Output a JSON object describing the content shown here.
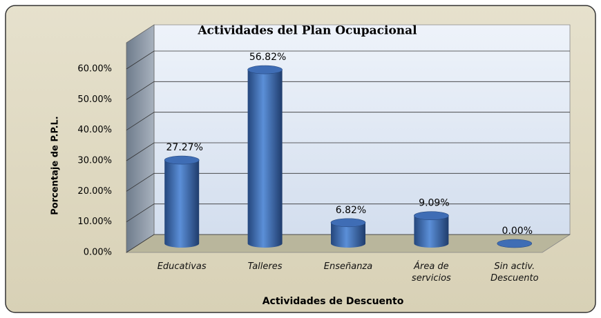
{
  "chart_data": {
    "type": "bar3d",
    "title": "Actividades del Plan Ocupacional",
    "x_label": "Actividades  de Descuento",
    "y_label": "Porcentaje de P.P.L.",
    "categories": [
      "Educativas",
      "Talleres",
      "Enseñanza",
      "Área de servicios",
      "Sin activ. Descuento"
    ],
    "values": [
      27.27,
      56.82,
      6.82,
      9.09,
      0
    ],
    "value_labels": [
      "27.27%",
      "56.82%",
      "6.82%",
      "9.09%",
      "0.00%"
    ],
    "color": "#3d6cb5",
    "ylim": [
      0,
      60
    ],
    "yticks": [
      {
        "value": 0,
        "label": "0.00%"
      },
      {
        "value": 10,
        "label": "10.00%"
      },
      {
        "value": 20,
        "label": "20.00%"
      },
      {
        "value": 30,
        "label": "30.00%"
      },
      {
        "value": 40,
        "label": "40.00%"
      },
      {
        "value": 50,
        "label": "50.00%"
      },
      {
        "value": 60,
        "label": "60.00%"
      }
    ],
    "grid": true
  }
}
